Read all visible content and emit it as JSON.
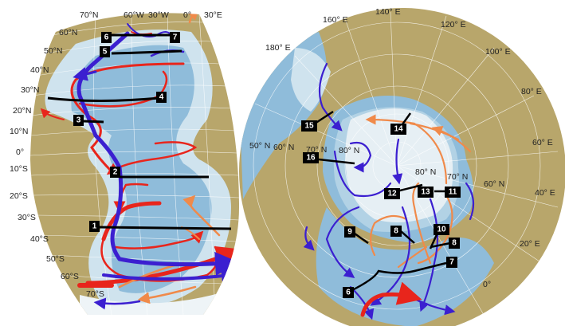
{
  "colors": {
    "land": "#b8a66b",
    "ocean_shelf": "#cfe3ee",
    "ocean_deep": "#7fb1d3",
    "ice": "#f2f6f8",
    "warm_current": "#e8251c",
    "cold_current": "#3b1fd0",
    "intermediate_current": "#f08a4a",
    "section_line": "#000000",
    "grid": "#ffffff"
  },
  "left_map": {
    "lat_labels": [
      "70°N",
      "60°N",
      "50°N",
      "40°N",
      "30°N",
      "20°N",
      "10°N",
      "0°",
      "10°S",
      "20°S",
      "30°S",
      "40°S",
      "50°S",
      "60°S",
      "70°S"
    ],
    "lon_labels": [
      "60°W",
      "30°W",
      "0°",
      "30°E"
    ],
    "section_labels": [
      "6",
      "7",
      "5",
      "4",
      "3",
      "2",
      "1"
    ]
  },
  "right_map": {
    "lon_labels": [
      "160° E",
      "140° E",
      "120° E",
      "100° E",
      "80° E",
      "60° E",
      "40° E",
      "20° E",
      "0°",
      "180° E"
    ],
    "lat_labels": [
      "50° N",
      "60° N",
      "70° N",
      "80° N",
      "80° N",
      "70° N",
      "60° N"
    ],
    "section_labels": [
      "15",
      "14",
      "16",
      "12",
      "13",
      "11",
      "9",
      "8",
      "10",
      "8",
      "7",
      "6"
    ]
  }
}
